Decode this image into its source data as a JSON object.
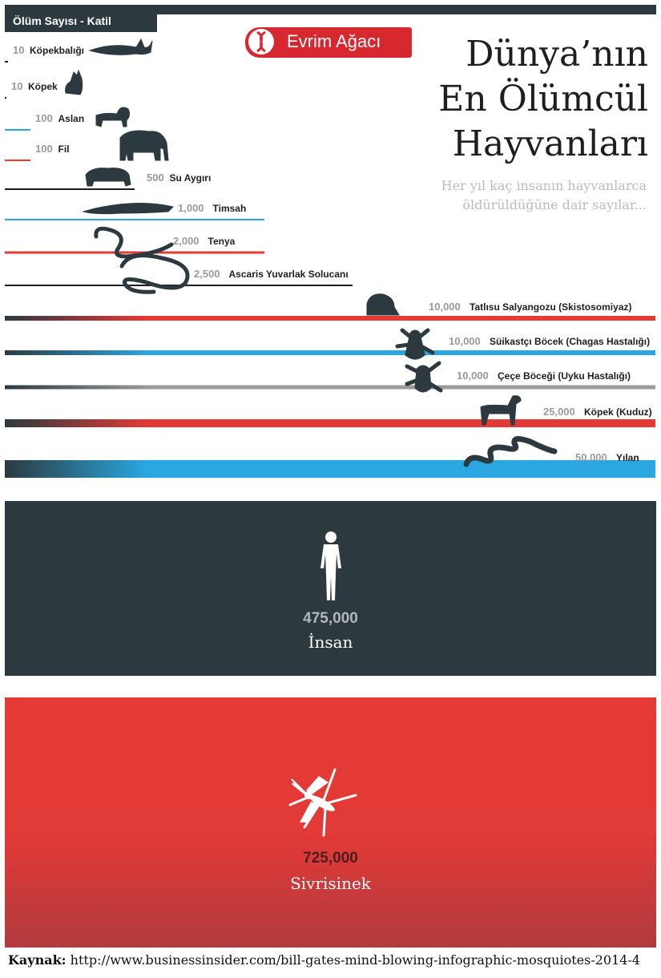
{
  "header": {
    "axis_label": "Ölüm Sayısı - Katil"
  },
  "logo": {
    "text": "Evrim Ağacı"
  },
  "title_lines": [
    "Dünya’nın",
    "En Ölümcül",
    "Hayvanları"
  ],
  "subtitle": "Her yıl kaç insanın hayvanlarca öldürüldüğüne dair sayılar...",
  "colors": {
    "dark": "#2c3a40",
    "red": "#e23a36",
    "blue": "#2aa7e0",
    "gray": "#9a9a9a",
    "black": "#1e1e1e"
  },
  "chart_data": {
    "type": "bar",
    "title": "",
    "xlabel": "Ölüm Sayısı",
    "ylabel": "Katil",
    "rows": [
      {
        "label": "Köpekbalığı",
        "value_text": "10",
        "value": 10,
        "color": "black",
        "icon": "shark-icon"
      },
      {
        "label": "Köpek",
        "value_text": "10",
        "value": 10,
        "color": "black",
        "icon": "wolf-icon"
      },
      {
        "label": "Aslan",
        "value_text": "100",
        "value": 100,
        "color": "blue",
        "icon": "lion-icon"
      },
      {
        "label": "Fil",
        "value_text": "100",
        "value": 100,
        "color": "red",
        "icon": "elephant-icon"
      },
      {
        "label": "Su Aygırı",
        "value_text": "500",
        "value": 500,
        "color": "black",
        "icon": "hippo-icon"
      },
      {
        "label": "Timsah",
        "value_text": "1,000",
        "value": 1000,
        "color": "blue",
        "icon": "crocodile-icon"
      },
      {
        "label": "Tenya",
        "value_text": "2,000",
        "value": 2000,
        "color": "red",
        "icon": "tapeworm-icon"
      },
      {
        "label": "Ascaris Yuvarlak Solucanı",
        "value_text": "2,500",
        "value": 2500,
        "color": "black",
        "icon": "roundworm-icon"
      },
      {
        "label": "Tatlısu Salyangozu (Skistosomiyaz)",
        "value_text": "10,000",
        "value": 10000,
        "color": "red",
        "icon": "snail-icon"
      },
      {
        "label": "Süikastçı Böcek (Chagas Hastalığı)",
        "value_text": "10,000",
        "value": 10000,
        "color": "blue",
        "icon": "assassin-bug-icon"
      },
      {
        "label": "Çeçe Böceği (Uyku Hastalığı)",
        "value_text": "10,000",
        "value": 10000,
        "color": "gray",
        "icon": "tsetse-fly-icon"
      },
      {
        "label": "Köpek (Kuduz)",
        "value_text": "25,000",
        "value": 25000,
        "color": "red",
        "icon": "dog-icon"
      },
      {
        "label": "Yılan",
        "value_text": "50,000",
        "value": 50000,
        "color": "blue",
        "icon": "snake-icon"
      }
    ],
    "highlights": [
      {
        "label": "İnsan",
        "value_text": "475,000",
        "value": 475000,
        "icon": "human-icon"
      },
      {
        "label": "Sivrisinek",
        "value_text": "725,000",
        "value": 725000,
        "icon": "mosquito-icon"
      }
    ]
  },
  "source": {
    "prefix": "Kaynak:",
    "url": "http://www.businessinsider.com/bill-gates-mind-blowing-infographic-mosquiotes-2014-4"
  }
}
